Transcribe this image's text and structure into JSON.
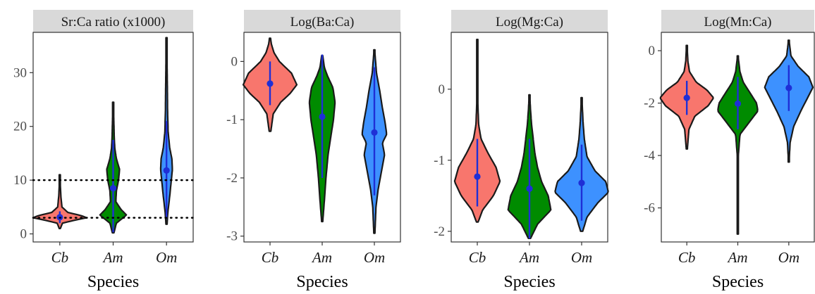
{
  "colors": {
    "Cb": "#f8766d",
    "Am": "#008b00",
    "Om": "#3d91ff",
    "stat": "#1f2fd6",
    "outline": "#1a1a1a",
    "strip": "#d9d9d9"
  },
  "chart_data": [
    {
      "type": "violin",
      "title": "Sr:Ca ratio (x1000)",
      "xlabel": "Species",
      "ylabel": "",
      "categories": [
        "Cb",
        "Am",
        "Om"
      ],
      "ylim": [
        -1.5,
        37.5
      ],
      "yticks": [
        0,
        10,
        20,
        30
      ],
      "ytick_labels": [
        "0",
        "10",
        "20",
        "30"
      ],
      "reference_lines": [
        10,
        3
      ],
      "violins": [
        {
          "category": "Cb",
          "min": 1,
          "max": 11,
          "mean": 3.1,
          "sd_low": 2.0,
          "sd_high": 4.2,
          "color": "Cb",
          "profile": [
            [
              1,
              0.02
            ],
            [
              2,
              0.1
            ],
            [
              2.6,
              0.6
            ],
            [
              3,
              1
            ],
            [
              3.4,
              0.8
            ],
            [
              4,
              0.3
            ],
            [
              5,
              0.08
            ],
            [
              7,
              0.04
            ],
            [
              9,
              0.02
            ],
            [
              11,
              0.01
            ]
          ]
        },
        {
          "category": "Am",
          "min": 0.2,
          "max": 24.5,
          "mean": 8.5,
          "sd_low": 0.3,
          "sd_high": 17.5,
          "color": "Am",
          "profile": [
            [
              0.2,
              0.03
            ],
            [
              2,
              0.12
            ],
            [
              3.5,
              0.5
            ],
            [
              4.5,
              0.3
            ],
            [
              6,
              0.1
            ],
            [
              8,
              0.12
            ],
            [
              10,
              0.2
            ],
            [
              12,
              0.24
            ],
            [
              14,
              0.12
            ],
            [
              16,
              0.06
            ],
            [
              18,
              0.04
            ],
            [
              20,
              0.03
            ],
            [
              24.5,
              0.01
            ]
          ]
        },
        {
          "category": "Om",
          "min": 1.8,
          "max": 36.5,
          "mean": 11.8,
          "sd_low": 3.0,
          "sd_high": 21.0,
          "color": "Om",
          "profile": [
            [
              1.8,
              0.02
            ],
            [
              4,
              0.05
            ],
            [
              7,
              0.12
            ],
            [
              10,
              0.18
            ],
            [
              12,
              0.22
            ],
            [
              14,
              0.2
            ],
            [
              16,
              0.12
            ],
            [
              19,
              0.06
            ],
            [
              23,
              0.04
            ],
            [
              28,
              0.03
            ],
            [
              32,
              0.02
            ],
            [
              36.5,
              0.01
            ]
          ]
        }
      ]
    },
    {
      "type": "violin",
      "title": "Log(Ba:Ca)",
      "xlabel": "Species",
      "ylabel": "",
      "categories": [
        "Cb",
        "Am",
        "Om"
      ],
      "ylim": [
        -3.1,
        0.5
      ],
      "yticks": [
        0,
        -1,
        -2,
        -3
      ],
      "ytick_labels": [
        "0",
        "-1",
        "-2",
        "-3"
      ],
      "reference_lines": [],
      "violins": [
        {
          "category": "Cb",
          "min": -1.2,
          "max": 0.4,
          "mean": -0.38,
          "sd_low": -0.75,
          "sd_high": 0.0,
          "color": "Cb",
          "profile": [
            [
              -1.2,
              0.03
            ],
            [
              -0.9,
              0.12
            ],
            [
              -0.7,
              0.4
            ],
            [
              -0.55,
              0.75
            ],
            [
              -0.4,
              1
            ],
            [
              -0.2,
              0.8
            ],
            [
              0,
              0.35
            ],
            [
              0.15,
              0.15
            ],
            [
              0.3,
              0.05
            ],
            [
              0.4,
              0.02
            ]
          ]
        },
        {
          "category": "Am",
          "min": -2.75,
          "max": 0.1,
          "mean": -0.95,
          "sd_low": -2.0,
          "sd_high": 0.12,
          "color": "Am",
          "profile": [
            [
              -2.75,
              0.02
            ],
            [
              -2.4,
              0.08
            ],
            [
              -2.0,
              0.14
            ],
            [
              -1.6,
              0.22
            ],
            [
              -1.3,
              0.32
            ],
            [
              -1.0,
              0.42
            ],
            [
              -0.7,
              0.48
            ],
            [
              -0.45,
              0.4
            ],
            [
              -0.25,
              0.2
            ],
            [
              -0.1,
              0.08
            ],
            [
              0.1,
              0.02
            ]
          ]
        },
        {
          "category": "Om",
          "min": -2.95,
          "max": 0.2,
          "mean": -1.22,
          "sd_low": -2.3,
          "sd_high": -0.1,
          "color": "Om",
          "profile": [
            [
              -2.95,
              0.02
            ],
            [
              -2.5,
              0.06
            ],
            [
              -2.2,
              0.14
            ],
            [
              -1.9,
              0.26
            ],
            [
              -1.6,
              0.38
            ],
            [
              -1.4,
              0.3
            ],
            [
              -1.25,
              0.46
            ],
            [
              -1.05,
              0.4
            ],
            [
              -0.8,
              0.3
            ],
            [
              -0.5,
              0.2
            ],
            [
              -0.2,
              0.08
            ],
            [
              0.2,
              0.01
            ]
          ]
        }
      ]
    },
    {
      "type": "violin",
      "title": "Log(Mg:Ca)",
      "xlabel": "Species",
      "ylabel": "",
      "categories": [
        "Cb",
        "Am",
        "Om"
      ],
      "ylim": [
        -2.15,
        0.8
      ],
      "yticks": [
        0,
        -1,
        -2
      ],
      "ytick_labels": [
        "0",
        "-1",
        "-2"
      ],
      "reference_lines": [],
      "violins": [
        {
          "category": "Cb",
          "min": -1.87,
          "max": 0.7,
          "mean": -1.23,
          "sd_low": -1.65,
          "sd_high": -0.7,
          "color": "Cb",
          "profile": [
            [
              -1.87,
              0.03
            ],
            [
              -1.7,
              0.2
            ],
            [
              -1.5,
              0.6
            ],
            [
              -1.3,
              0.85
            ],
            [
              -1.1,
              0.7
            ],
            [
              -0.9,
              0.4
            ],
            [
              -0.7,
              0.14
            ],
            [
              -0.5,
              0.05
            ],
            [
              -0.2,
              0.02
            ],
            [
              0.3,
              0.01
            ],
            [
              0.7,
              0.005
            ]
          ]
        },
        {
          "category": "Am",
          "min": -2.1,
          "max": -0.08,
          "mean": -1.4,
          "sd_low": -2.1,
          "sd_high": -0.7,
          "color": "Am",
          "profile": [
            [
              -2.1,
              0.04
            ],
            [
              -1.9,
              0.3
            ],
            [
              -1.7,
              0.8
            ],
            [
              -1.5,
              0.7
            ],
            [
              -1.3,
              0.45
            ],
            [
              -1.1,
              0.3
            ],
            [
              -0.9,
              0.2
            ],
            [
              -0.7,
              0.14
            ],
            [
              -0.5,
              0.08
            ],
            [
              -0.3,
              0.04
            ],
            [
              -0.08,
              0.01
            ]
          ]
        },
        {
          "category": "Om",
          "min": -2.0,
          "max": -0.12,
          "mean": -1.32,
          "sd_low": -1.85,
          "sd_high": -0.78,
          "color": "Om",
          "profile": [
            [
              -2.0,
              0.04
            ],
            [
              -1.8,
              0.2
            ],
            [
              -1.6,
              0.6
            ],
            [
              -1.45,
              1
            ],
            [
              -1.3,
              0.9
            ],
            [
              -1.15,
              0.5
            ],
            [
              -0.95,
              0.2
            ],
            [
              -0.7,
              0.1
            ],
            [
              -0.45,
              0.05
            ],
            [
              -0.12,
              0.01
            ]
          ]
        }
      ]
    },
    {
      "type": "violin",
      "title": "Log(Mn:Ca)",
      "xlabel": "Species",
      "ylabel": "",
      "categories": [
        "Cb",
        "Am",
        "Om"
      ],
      "ylim": [
        -7.3,
        0.7
      ],
      "yticks": [
        0,
        -2,
        -4,
        -6
      ],
      "ytick_labels": [
        "0",
        "-2",
        "-4",
        "-6"
      ],
      "reference_lines": [],
      "violins": [
        {
          "category": "Cb",
          "min": -3.75,
          "max": 0.2,
          "mean": -1.8,
          "sd_low": -2.45,
          "sd_high": -1.15,
          "color": "Cb",
          "profile": [
            [
              -3.75,
              0.02
            ],
            [
              -3.0,
              0.08
            ],
            [
              -2.5,
              0.3
            ],
            [
              -2.1,
              0.8
            ],
            [
              -1.8,
              1
            ],
            [
              -1.5,
              0.75
            ],
            [
              -1.2,
              0.35
            ],
            [
              -0.8,
              0.1
            ],
            [
              -0.4,
              0.04
            ],
            [
              0.2,
              0.01
            ]
          ]
        },
        {
          "category": "Am",
          "min": -7.0,
          "max": -0.2,
          "mean": -2.02,
          "sd_low": -3.0,
          "sd_high": -1.0,
          "color": "Am",
          "profile": [
            [
              -7.0,
              0.01
            ],
            [
              -5.5,
              0.01
            ],
            [
              -4.0,
              0.02
            ],
            [
              -3.2,
              0.08
            ],
            [
              -2.7,
              0.45
            ],
            [
              -2.3,
              0.75
            ],
            [
              -2.0,
              0.7
            ],
            [
              -1.6,
              0.45
            ],
            [
              -1.2,
              0.2
            ],
            [
              -0.8,
              0.08
            ],
            [
              -0.2,
              0.01
            ]
          ]
        },
        {
          "category": "Om",
          "min": -4.25,
          "max": 0.4,
          "mean": -1.42,
          "sd_low": -2.3,
          "sd_high": -0.55,
          "color": "Om",
          "profile": [
            [
              -4.25,
              0.01
            ],
            [
              -3.5,
              0.05
            ],
            [
              -2.9,
              0.18
            ],
            [
              -2.3,
              0.45
            ],
            [
              -1.8,
              0.7
            ],
            [
              -1.4,
              0.9
            ],
            [
              -1.0,
              0.75
            ],
            [
              -0.6,
              0.35
            ],
            [
              -0.2,
              0.08
            ],
            [
              0.4,
              0.01
            ]
          ]
        }
      ]
    }
  ]
}
